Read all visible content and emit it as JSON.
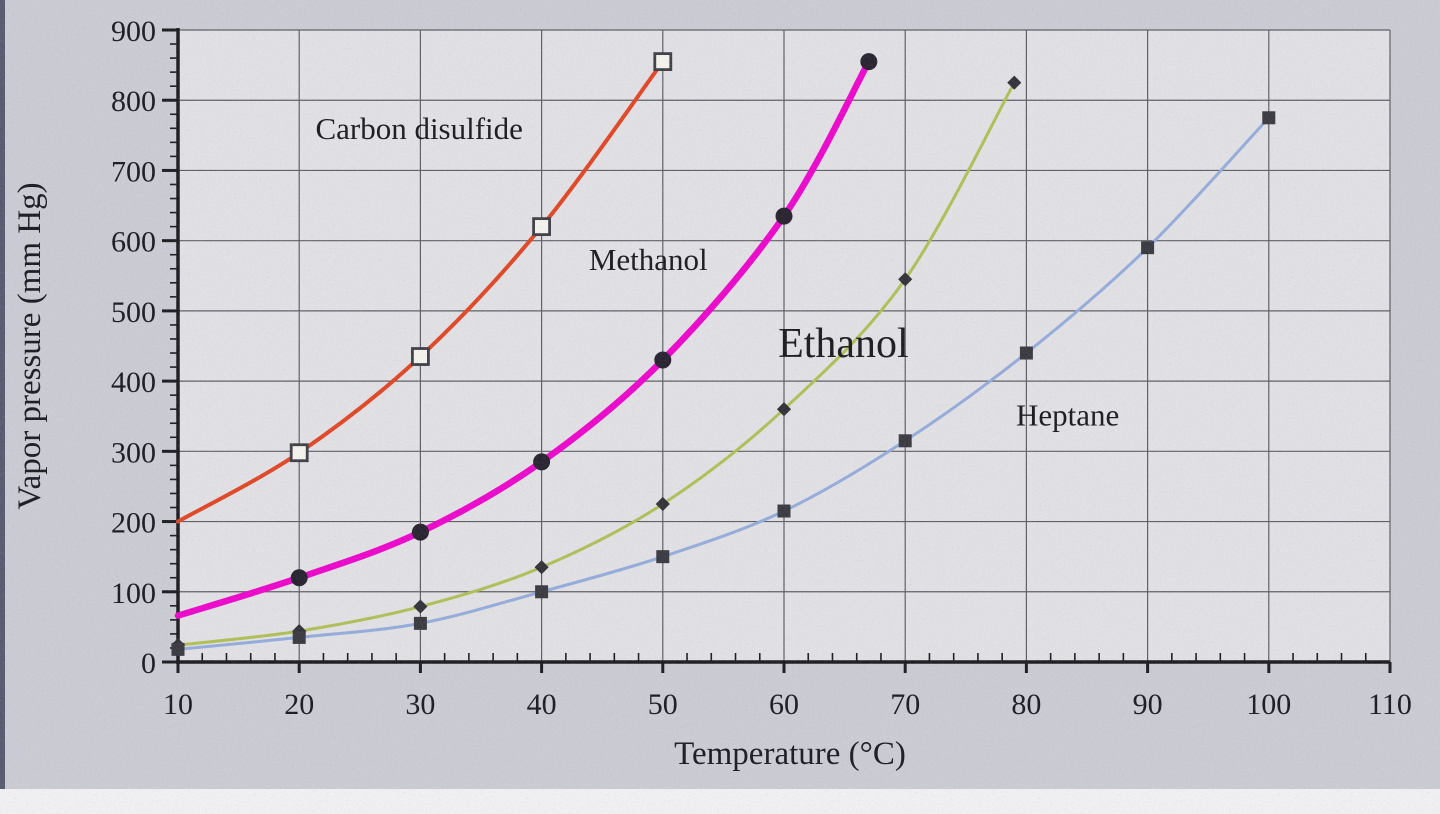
{
  "chart_data": {
    "type": "line",
    "title": "",
    "xlabel": "Temperature (°C)",
    "ylabel": "Vapor pressure (mm Hg)",
    "xlim": [
      10,
      110
    ],
    "ylim": [
      0,
      900
    ],
    "xticks": [
      10,
      20,
      30,
      40,
      50,
      60,
      70,
      80,
      90,
      100,
      110
    ],
    "yticks": [
      0,
      100,
      200,
      300,
      400,
      500,
      600,
      700,
      800,
      900
    ],
    "grid": true,
    "legend": "none",
    "grid_color": "#5a5a64",
    "axis_color": "#15151b",
    "plot_bg": "#e3e2e6",
    "page_bg": "#cbccd5",
    "series": [
      {
        "id": "carbon-disulfide",
        "name": "Carbon disulfide",
        "color": "#e2421f",
        "line_width": 4,
        "marker": "open-square",
        "marker_color": "#3a3a40",
        "marker_start": 1,
        "label_pos": {
          "x": 29.9,
          "y": 745
        },
        "label_size": 31,
        "points": [
          [
            10,
            200
          ],
          [
            20,
            298
          ],
          [
            30,
            435
          ],
          [
            40,
            620
          ],
          [
            50,
            855
          ]
        ]
      },
      {
        "id": "methanol",
        "name": "Methanol",
        "color": "#ee00cc",
        "line_width": 6.5,
        "marker": "filled-circle",
        "marker_color": "#221c2a",
        "marker_start": 1,
        "label_pos": {
          "x": 48.8,
          "y": 558
        },
        "label_size": 31,
        "points": [
          [
            10,
            66
          ],
          [
            20,
            120
          ],
          [
            30,
            185
          ],
          [
            40,
            285
          ],
          [
            50,
            430
          ],
          [
            60,
            635
          ],
          [
            67,
            855
          ]
        ]
      },
      {
        "id": "ethanol",
        "name": "Ethanol",
        "color": "#b0bf52",
        "line_width": 3,
        "marker": "filled-diamond",
        "marker_color": "#2c2c34",
        "marker_start": 0,
        "label_pos": {
          "x": 64.9,
          "y": 434
        },
        "label_size": 42,
        "points": [
          [
            10,
            24
          ],
          [
            20,
            44
          ],
          [
            30,
            79
          ],
          [
            40,
            135
          ],
          [
            50,
            225
          ],
          [
            60,
            360
          ],
          [
            70,
            545
          ],
          [
            79,
            825
          ]
        ]
      },
      {
        "id": "heptane",
        "name": "Heptane",
        "color": "#93abdc",
        "line_width": 3,
        "marker": "filled-square",
        "marker_color": "#34343c",
        "marker_start": 0,
        "label_pos": {
          "x": 83.4,
          "y": 337
        },
        "label_size": 31,
        "points": [
          [
            10,
            18
          ],
          [
            20,
            35
          ],
          [
            30,
            55
          ],
          [
            40,
            100
          ],
          [
            50,
            150
          ],
          [
            60,
            215
          ],
          [
            70,
            315
          ],
          [
            80,
            440
          ],
          [
            90,
            590
          ],
          [
            100,
            775
          ]
        ]
      }
    ]
  }
}
